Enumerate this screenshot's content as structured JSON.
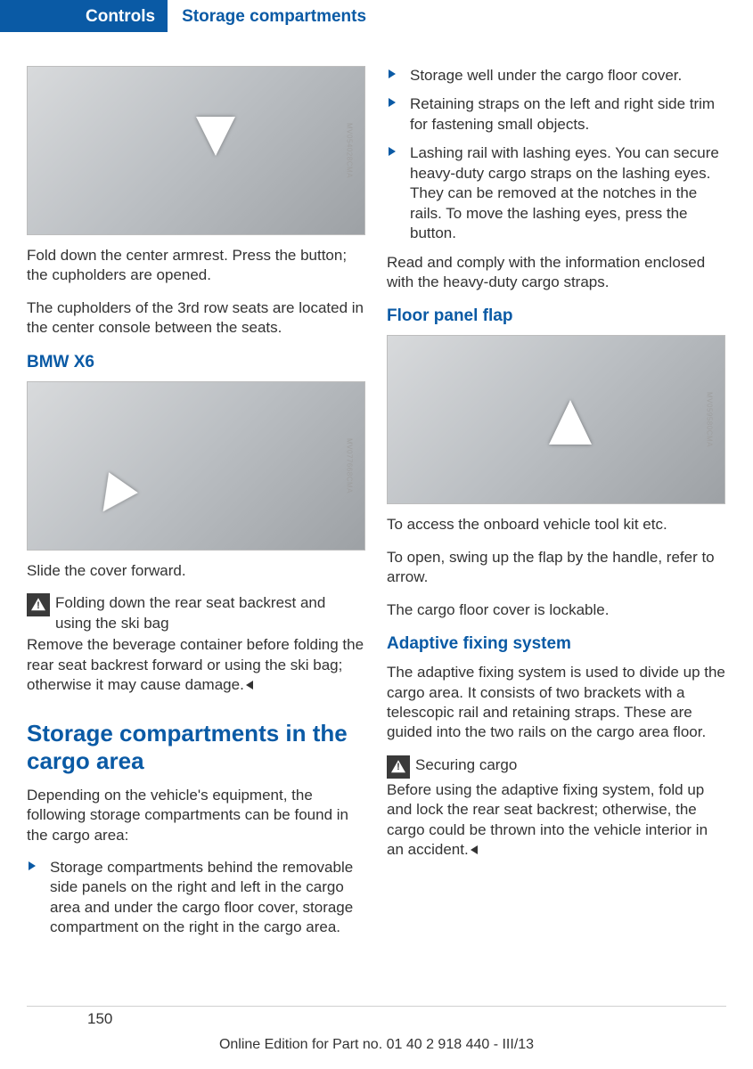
{
  "header": {
    "controls": "Controls",
    "section": "Storage compartments"
  },
  "col_left": {
    "fig1_code": "MV054028CMA",
    "p1": "Fold down the center armrest. Press the button; the cupholders are opened.",
    "p2": "The cupholders of the 3rd row seats are located in the center console between the seats.",
    "h_bmw": "BMW X6",
    "fig2_code": "MV077668CMA",
    "p3": "Slide the cover forward.",
    "warn1_line": "Folding down the rear seat backrest and using the ski bag",
    "warn1_body": "Remove the beverage container before folding the rear seat backrest forward or using the ski bag; otherwise it may cause damage.",
    "h_storage": "Storage compartments in the cargo area",
    "p4": "Depending on the vehicle's equipment, the following storage compartments can be found in the cargo area:",
    "bullet1": "Storage compartments behind the removable side panels on the right and left in the cargo area and under the cargo floor cover, storage compartment on the right in the cargo area."
  },
  "col_right": {
    "bullet2": "Storage well under the cargo floor cover.",
    "bullet3": "Retaining straps on the left and right side trim for fastening small objects.",
    "bullet4": "Lashing rail with lashing eyes. You can secure heavy-duty cargo straps on the lashing eyes. They can be removed at the notches in the rails. To move the lashing eyes, press the button.",
    "p5": "Read and comply with the information enclosed with the heavy-duty cargo straps.",
    "h_floor": "Floor panel flap",
    "fig3_code": "MV059580CMA",
    "p6": "To access the onboard vehicle tool kit etc.",
    "p7": "To open, swing up the flap by the handle, refer to arrow.",
    "p8": "The cargo floor cover is lockable.",
    "h_adaptive": "Adaptive fixing system",
    "p9": "The adaptive fixing system is used to divide up the cargo area. It consists of two brackets with a telescopic rail and retaining straps. These are guided into the two rails on the cargo area floor.",
    "warn2_line": "Securing cargo",
    "warn2_body": "Before using the adaptive fixing system, fold up and lock the rear seat backrest; otherwise, the cargo could be thrown into the vehicle interior in an accident."
  },
  "footer": {
    "page": "150",
    "line": "Online Edition for Part no. 01 40 2 918 440 - III/13"
  }
}
